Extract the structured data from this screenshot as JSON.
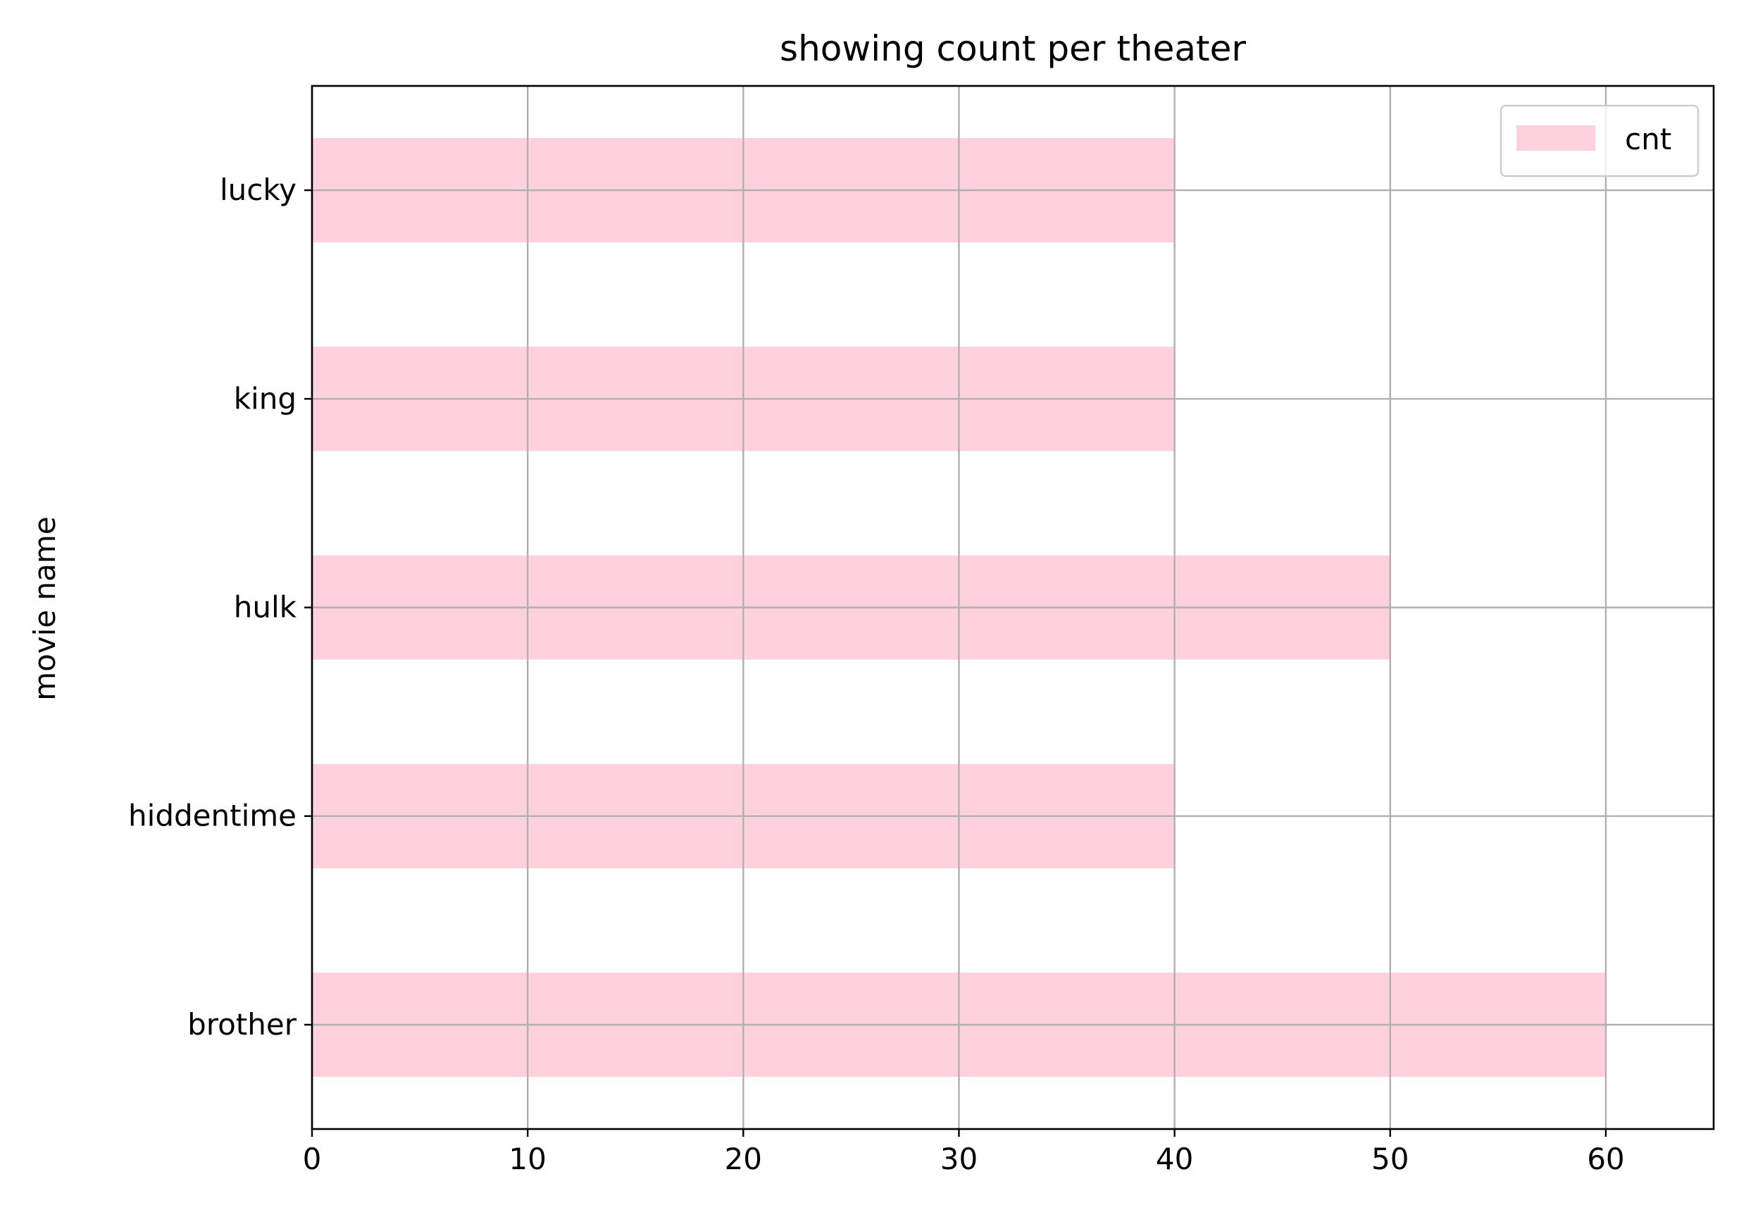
{
  "chart_data": {
    "type": "bar",
    "orientation": "horizontal",
    "title": "showing count per theater",
    "xlabel": "",
    "ylabel": "movie name",
    "categories": [
      "brother",
      "hiddentime",
      "hulk",
      "king",
      "lucky"
    ],
    "series": [
      {
        "name": "cnt",
        "values": [
          60,
          40,
          50,
          40,
          40
        ],
        "color": "#ffd1dc"
      }
    ],
    "xlim": [
      0,
      65
    ],
    "xticks": [
      0,
      10,
      20,
      30,
      40,
      50,
      60
    ],
    "grid": true,
    "legend_position": "upper right"
  }
}
